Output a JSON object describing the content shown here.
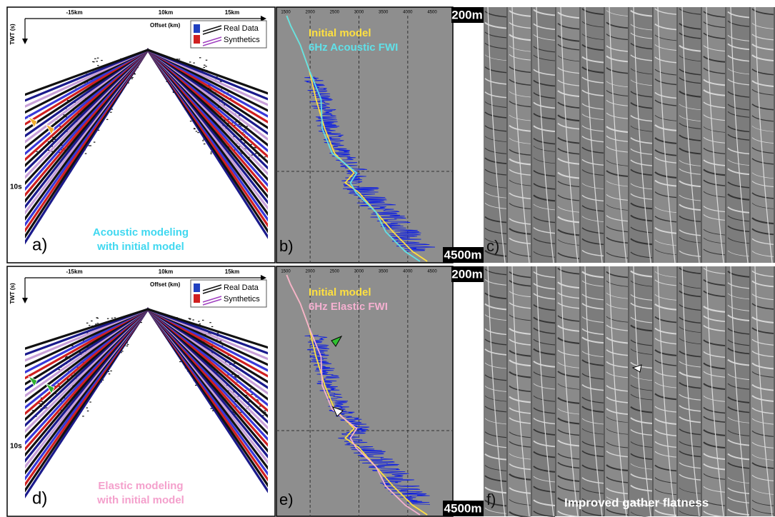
{
  "rows": [
    {
      "gather_panel": {
        "label": "a)",
        "x_ticks": [
          "-15km",
          "10km",
          "15km"
        ],
        "x_title": "Offset (km)",
        "y_title": "TWT (s)",
        "y_tick": "10s",
        "legend": [
          "Real Data",
          "Synthetics"
        ],
        "caption": [
          "Acoustic modeling",
          "with initial model"
        ]
      },
      "velocity_panel": {
        "label": "b)",
        "velocity_ticks": [
          1500,
          2000,
          2500,
          3000,
          3500,
          4000,
          4500
        ],
        "legend": [
          "Initial model",
          "6Hz Acoustic FWI"
        ]
      },
      "depth_labels": [
        "200m",
        "4500m"
      ],
      "cig_panel": {
        "label": "c)"
      }
    },
    {
      "gather_panel": {
        "label": "d)",
        "x_ticks": [
          "-15km",
          "10km",
          "15km"
        ],
        "x_title": "Offset (km)",
        "y_title": "TWT (s)",
        "y_tick": "10s",
        "legend": [
          "Real Data",
          "Synthetics"
        ],
        "caption": [
          "Elastic modeling",
          "with initial model"
        ]
      },
      "velocity_panel": {
        "label": "e)",
        "velocity_ticks": [
          1500,
          2000,
          2500,
          3000,
          3500,
          4000,
          4500
        ],
        "legend": [
          "Initial model",
          "6Hz Elastic FWI"
        ]
      },
      "depth_labels": [
        "200m",
        "4500m"
      ],
      "cig_panel": {
        "label": "f)",
        "caption": "Improved gather flatness"
      }
    }
  ]
}
